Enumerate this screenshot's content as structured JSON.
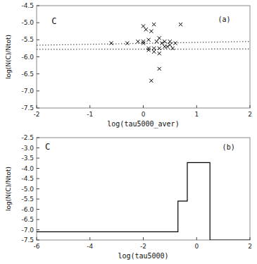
{
  "chart_data": [
    {
      "type": "scatter",
      "x_label": "log(tau5000_aver)",
      "y_label": "log(N(C)/Ntot)",
      "annotations": [
        "C",
        "(a)"
      ],
      "series": [
        {
          "type": "line",
          "line_style": "dotted",
          "color": "#555555",
          "x": [
            -2.0,
            2.0
          ],
          "values": [
            -5.78,
            -5.77
          ]
        },
        {
          "type": "line",
          "line_style": "dotted",
          "color": "#555555",
          "x": [
            -2.0,
            2.0
          ],
          "values": [
            -5.66,
            -5.55
          ]
        },
        {
          "type": "scatter",
          "marker": "x",
          "color": "#000000",
          "x": [
            -0.6,
            -0.3,
            -0.1,
            0.0,
            0.0,
            0.05,
            0.1,
            0.1,
            0.15,
            0.2,
            0.2,
            0.25,
            0.3,
            0.3,
            0.35,
            0.4,
            0.45,
            0.5,
            0.55,
            0.6,
            0.7,
            0.0,
            0.1,
            0.2,
            0.3,
            0.4,
            0.5,
            0.3,
            0.15
          ],
          "values": [
            -5.6,
            -5.6,
            -5.55,
            -5.1,
            -5.55,
            -5.2,
            -5.5,
            -5.75,
            -5.25,
            -5.05,
            -5.85,
            -5.55,
            -5.45,
            -5.9,
            -5.6,
            -5.7,
            -5.7,
            -5.65,
            -5.75,
            -5.6,
            -5.05,
            -5.6,
            -5.8,
            -5.75,
            -5.75,
            -5.55,
            -5.55,
            -6.35,
            -6.7
          ]
        }
      ],
      "xlim": [
        -2.0,
        2.0
      ],
      "ylim": [
        -7.5,
        -4.5
      ],
      "xticks": [
        -2,
        -1,
        0,
        1,
        2
      ],
      "yticks": [
        -7.5,
        {
          "value": -7,
          "label": "-7.0"
        },
        -6.5,
        {
          "value": -6,
          "label": "-6.0"
        },
        -5.5,
        {
          "value": -5,
          "label": "-5.0"
        },
        -4.5
      ]
    },
    {
      "type": "line",
      "x_label": "log(tau5000)",
      "y_label": "log(N(C)/Ntot)",
      "annotations": [
        "C",
        "(b)"
      ],
      "series": [
        {
          "type": "line",
          "color": "#000000",
          "x": [
            -6.0,
            -0.7,
            -0.7,
            -0.35,
            -0.35,
            0.5,
            0.5,
            2.0
          ],
          "values": [
            -7.1,
            -7.1,
            -5.6,
            -5.6,
            -3.72,
            -3.72,
            -7.5,
            -7.5
          ]
        }
      ],
      "xlim": [
        -6.0,
        2.0
      ],
      "ylim": [
        -7.5,
        -2.5
      ],
      "xticks": [
        -6,
        -4,
        -2,
        0,
        2
      ],
      "yticks": [
        -7.5,
        {
          "value": -7,
          "label": "-7.0"
        },
        -6.5,
        {
          "value": -6,
          "label": "-6.0"
        },
        -5.5,
        {
          "value": -5,
          "label": "-5.0"
        },
        -4.5,
        {
          "value": -4,
          "label": "-4.0"
        },
        -3.5,
        {
          "value": -3,
          "label": "-3.0"
        },
        -2.5
      ]
    }
  ]
}
